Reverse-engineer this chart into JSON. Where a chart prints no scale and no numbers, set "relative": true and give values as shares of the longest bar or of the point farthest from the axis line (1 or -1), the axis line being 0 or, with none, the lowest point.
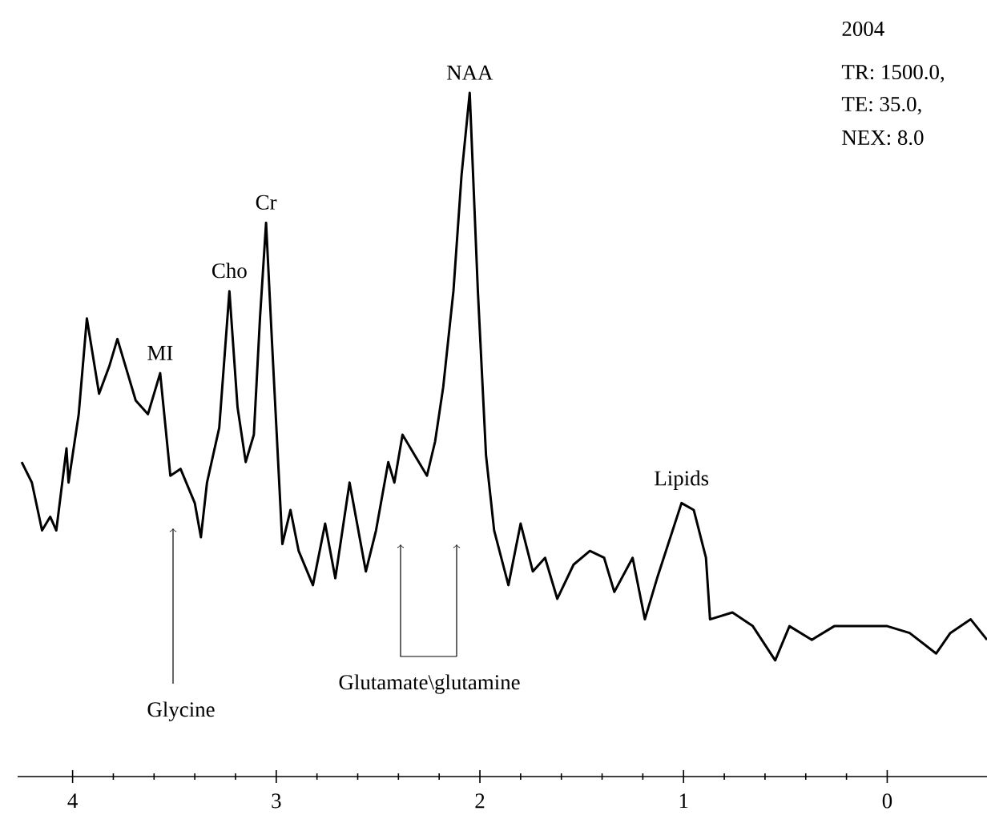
{
  "chart_data": {
    "type": "line",
    "relative": true,
    "xlim": [
      4.27,
      -0.49
    ],
    "xticks": [
      4,
      3,
      2,
      1,
      0
    ],
    "marker": "none",
    "series": [
      {
        "color": "#000000",
        "x": [
          4.25,
          4.2,
          4.15,
          4.11,
          4.08,
          4.03,
          4.02,
          3.97,
          3.93,
          3.87,
          3.82,
          3.78,
          3.73,
          3.69,
          3.63,
          3.57,
          3.52,
          3.47,
          3.4,
          3.37,
          3.34,
          3.28,
          3.23,
          3.19,
          3.15,
          3.11,
          3.08,
          3.05,
          3.02,
          2.97,
          2.93,
          2.89,
          2.82,
          2.76,
          2.71,
          2.64,
          2.56,
          2.51,
          2.45,
          2.42,
          2.38,
          2.26,
          2.22,
          2.18,
          2.13,
          2.09,
          2.05,
          2.01,
          1.97,
          1.93,
          1.86,
          1.8,
          1.74,
          1.68,
          1.62,
          1.54,
          1.46,
          1.39,
          1.34,
          1.25,
          1.19,
          1.13,
          1.01,
          0.95,
          0.89,
          0.87,
          0.76,
          0.66,
          0.55,
          0.48,
          0.37,
          0.26,
          0.13,
          0.0,
          -0.11,
          -0.24,
          -0.31,
          -0.41,
          -0.49
        ],
        "values": [
          0.46,
          0.43,
          0.36,
          0.38,
          0.36,
          0.48,
          0.43,
          0.53,
          0.67,
          0.56,
          0.6,
          0.64,
          0.59,
          0.55,
          0.53,
          0.59,
          0.44,
          0.45,
          0.4,
          0.35,
          0.43,
          0.51,
          0.71,
          0.54,
          0.46,
          0.5,
          0.67,
          0.81,
          0.63,
          0.34,
          0.39,
          0.33,
          0.28,
          0.37,
          0.29,
          0.43,
          0.3,
          0.36,
          0.46,
          0.43,
          0.5,
          0.44,
          0.49,
          0.57,
          0.71,
          0.88,
          1.0,
          0.71,
          0.47,
          0.36,
          0.28,
          0.37,
          0.3,
          0.32,
          0.26,
          0.31,
          0.33,
          0.32,
          0.27,
          0.32,
          0.23,
          0.29,
          0.4,
          0.39,
          0.32,
          0.23,
          0.24,
          0.22,
          0.17,
          0.22,
          0.2,
          0.22,
          0.22,
          0.22,
          0.21,
          0.18,
          0.21,
          0.23,
          0.2
        ]
      }
    ],
    "annotations": [
      {
        "text": "MI",
        "x": 3.57,
        "y": 0.59
      },
      {
        "text": "Cho",
        "x": 3.23,
        "y": 0.71
      },
      {
        "text": "Cr",
        "x": 3.05,
        "y": 0.81
      },
      {
        "text": "NAA",
        "x": 2.05,
        "y": 1.0
      },
      {
        "text": "Lipids",
        "x": 1.01,
        "y": 0.4
      },
      "Glycine",
      "Glutamate\\glutamine",
      "2004",
      "TR: 1500.0,",
      "TE: 35.0,",
      "NEX: 8.0"
    ]
  }
}
